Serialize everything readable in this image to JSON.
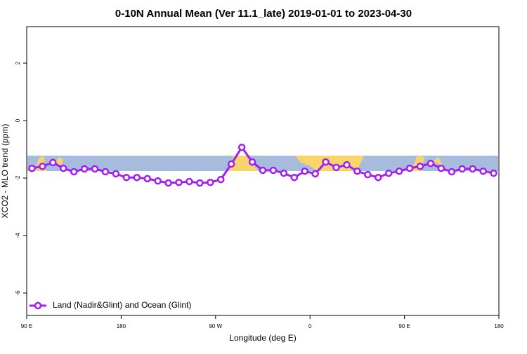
{
  "chart_data": {
    "type": "line",
    "title": "0-10N Annual Mean (Ver 11.1_late)   2019-01-01 to 2023-04-30",
    "x_label": "Longitude (deg E)",
    "y_label": "XCO2 - MLO trend (ppm)",
    "xlim": [
      90,
      540
    ],
    "xticks": [
      {
        "value": 90,
        "label": "90 E"
      },
      {
        "value": 180,
        "label": "180"
      },
      {
        "value": 270,
        "label": "90 W"
      },
      {
        "value": 360,
        "label": "0"
      },
      {
        "value": 450,
        "label": "90 E"
      },
      {
        "value": 540,
        "label": "180"
      }
    ],
    "ylim": [
      -6.78,
      3.27
    ],
    "yticks": [
      -6,
      -4,
      -2,
      0,
      2
    ],
    "legend": "bottom-left",
    "x": [
      95,
      105,
      115,
      125,
      135,
      145,
      155,
      165,
      175,
      185,
      195,
      205,
      215,
      225,
      235,
      245,
      255,
      265,
      275,
      285,
      295,
      305,
      315,
      325,
      335,
      345,
      355,
      365,
      375,
      385,
      395,
      405,
      415,
      425,
      435,
      445,
      455,
      465,
      475,
      485,
      495,
      505,
      515,
      525,
      535
    ],
    "series": [
      {
        "name": "Land (Nadir&Glint) and Ocean (Glint)",
        "color": "#a020f0",
        "values": [
          -1.66,
          -1.59,
          -1.46,
          -1.66,
          -1.78,
          -1.68,
          -1.68,
          -1.78,
          -1.85,
          -1.98,
          -1.98,
          -2.02,
          -2.1,
          -2.17,
          -2.15,
          -2.12,
          -2.17,
          -2.15,
          -2.05,
          -1.51,
          -0.93,
          -1.44,
          -1.73,
          -1.73,
          -1.83,
          -1.98,
          -1.76,
          -1.85,
          -1.44,
          -1.63,
          -1.54,
          -1.76,
          -1.88,
          -1.98,
          -1.83,
          -1.76,
          -1.66,
          -1.59,
          -1.49,
          -1.66,
          -1.78,
          -1.68,
          -1.68,
          -1.76,
          -1.83
        ]
      }
    ]
  }
}
